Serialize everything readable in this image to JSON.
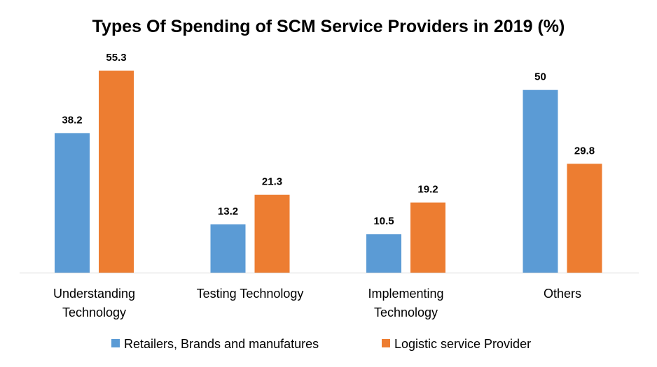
{
  "chart_data": {
    "type": "bar",
    "title": "Types Of Spending of SCM Service Providers in 2019 (%)",
    "xlabel": "",
    "ylabel": "",
    "ylim": [
      0,
      60
    ],
    "grid": false,
    "legend_position": "bottom",
    "categories": [
      [
        "Understanding",
        "Technology"
      ],
      [
        "Testing Technology"
      ],
      [
        "Implementing",
        "Technology"
      ],
      [
        "Others"
      ]
    ],
    "series": [
      {
        "name": "Retailers, Brands and manufatures",
        "color": "#5B9BD5",
        "values": [
          38.2,
          13.2,
          10.5,
          50
        ],
        "labels": [
          "38.2",
          "13.2",
          "10.5",
          "50"
        ]
      },
      {
        "name": "Logistic service Provider",
        "color": "#ED7D31",
        "values": [
          55.3,
          21.3,
          19.2,
          29.8
        ],
        "labels": [
          "55.3",
          "21.3",
          "19.2",
          "29.8"
        ]
      }
    ]
  }
}
